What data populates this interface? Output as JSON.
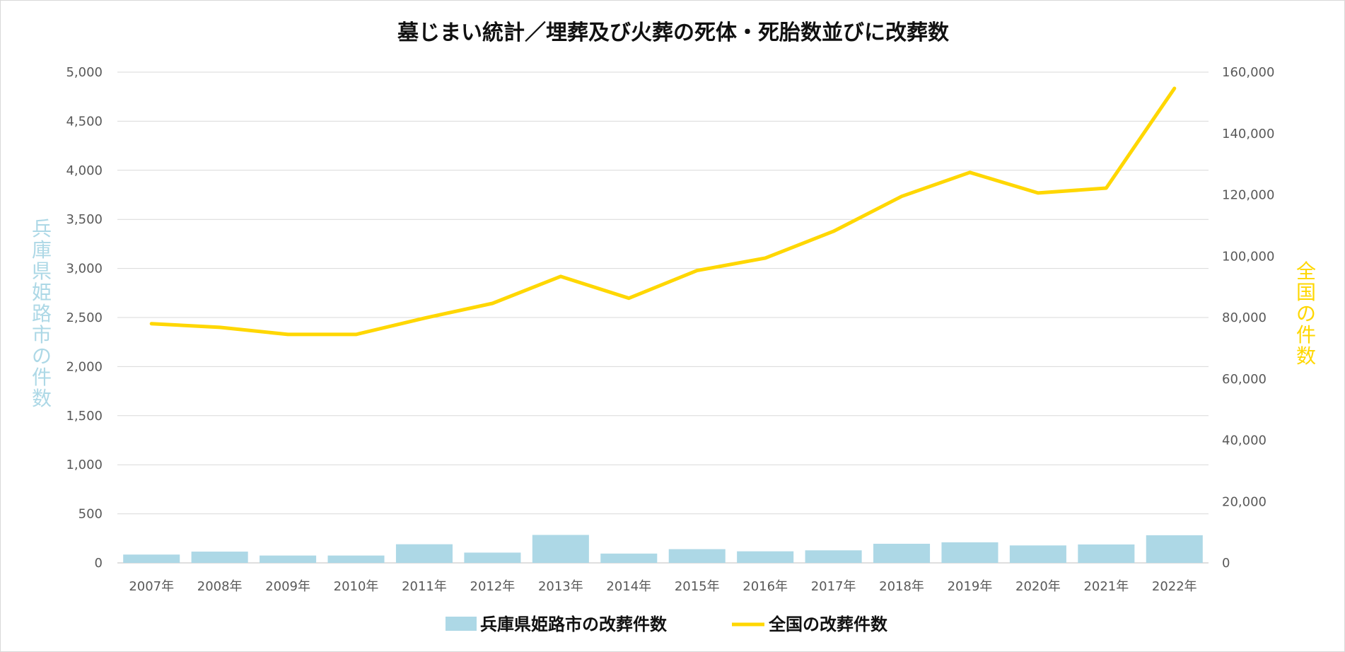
{
  "chart_data": {
    "type": "bar",
    "title": "墓じまい統計／埋葬及び火葬の死体・死胎数並びに改葬数",
    "categories": [
      "2007年",
      "2008年",
      "2009年",
      "2010年",
      "2011年",
      "2012年",
      "2013年",
      "2014年",
      "2015年",
      "2016年",
      "2017年",
      "2018年",
      "2019年",
      "2020年",
      "2021年",
      "2022年"
    ],
    "y_left": {
      "label": "兵庫県姫路市の件数",
      "range": [
        0,
        5000
      ],
      "ticks": [
        0,
        500,
        1000,
        1500,
        2000,
        2500,
        3000,
        3500,
        4000,
        4500,
        5000
      ],
      "tick_labels": [
        "0",
        "500",
        "1,000",
        "1,500",
        "2,000",
        "2,500",
        "3,000",
        "3,500",
        "4,000",
        "4,500",
        "5,000"
      ],
      "color": "#add8e6"
    },
    "y_right": {
      "label": "全国の件数",
      "range": [
        0,
        160000
      ],
      "ticks": [
        0,
        20000,
        40000,
        60000,
        80000,
        100000,
        120000,
        140000,
        160000
      ],
      "tick_labels": [
        "0",
        "20,000",
        "40,000",
        "60,000",
        "80,000",
        "100,000",
        "120,000",
        "140,000",
        "160,000"
      ],
      "color": "#ffd700"
    },
    "series": [
      {
        "name": "兵庫県姫路市の改葬件数",
        "type": "bar",
        "axis": "left",
        "color": "#add8e6",
        "values": [
          85,
          115,
          75,
          75,
          190,
          105,
          285,
          95,
          140,
          118,
          128,
          195,
          210,
          178,
          188,
          282
        ]
      },
      {
        "name": "全国の改葬件数",
        "type": "line",
        "axis": "right",
        "color": "#ffd700",
        "values": [
          78000,
          76800,
          74500,
          74500,
          79800,
          84600,
          93400,
          86300,
          95300,
          99400,
          108100,
          119500,
          127300,
          120600,
          122200,
          154700
        ]
      }
    ],
    "grid": true,
    "legend_position": "bottom"
  }
}
